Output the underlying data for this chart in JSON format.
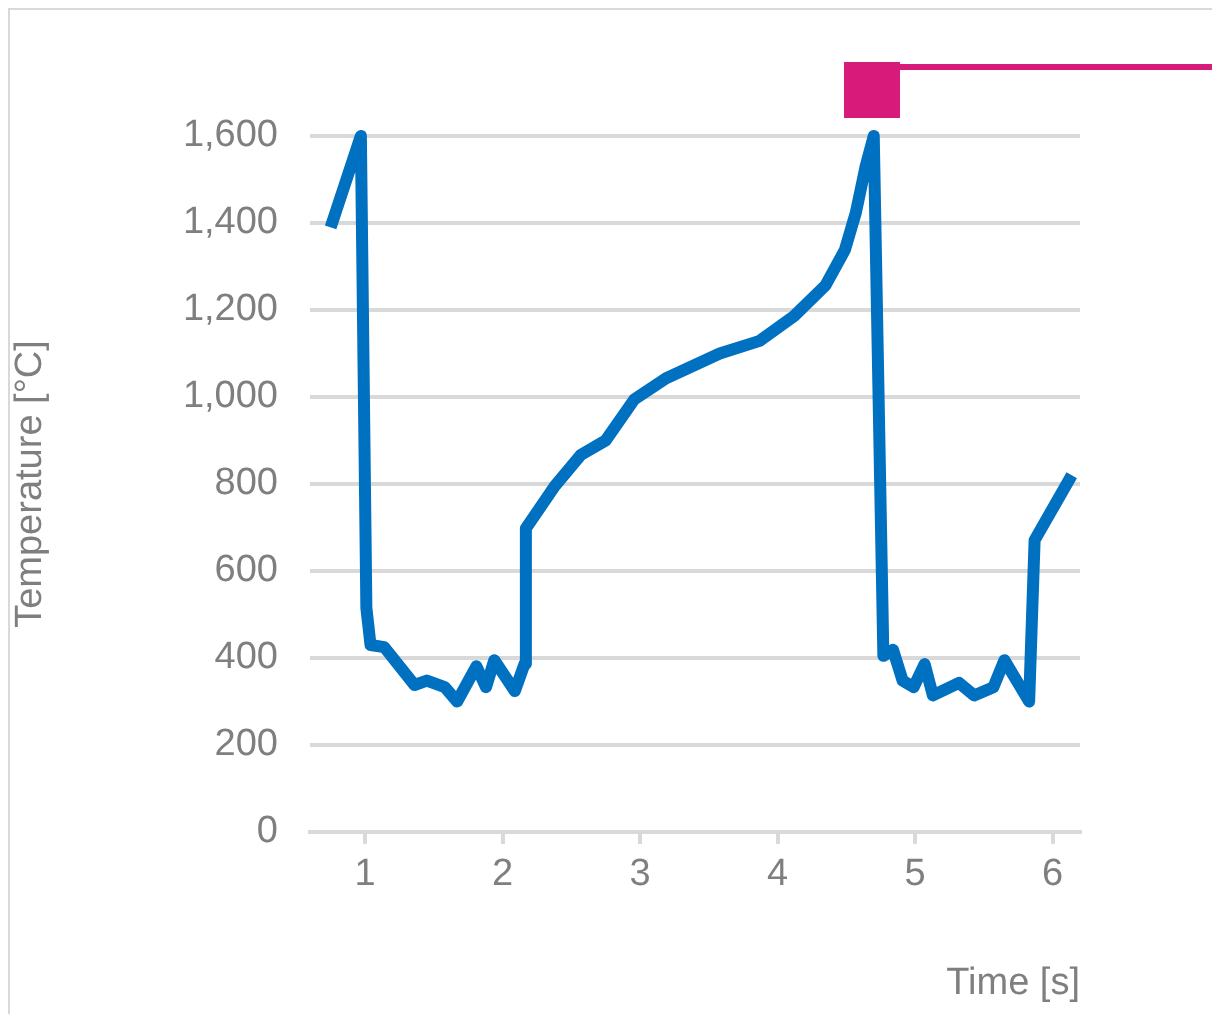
{
  "chart_data": {
    "type": "line",
    "xlabel": "Time [s]",
    "ylabel": "Temperature [°C]",
    "xlim": [
      0.6,
      6.2
    ],
    "xticks": [
      1,
      2,
      3,
      4,
      5,
      6
    ],
    "ylim": [
      0,
      1600
    ],
    "yticks": [
      0,
      200,
      400,
      600,
      800,
      {
        "value": 1000,
        "label": "1,000"
      },
      {
        "value": 1200,
        "label": "1,200"
      },
      {
        "value": 1400,
        "label": "1,400"
      },
      {
        "value": 1600,
        "label": "1,600"
      }
    ],
    "grid": "y",
    "legend": false,
    "marker": "none",
    "line_style": "solid",
    "series": [
      {
        "color": "#0070c0",
        "x": [
          0.75,
          0.97,
          1.01,
          1.04,
          1.14,
          1.36,
          1.45,
          1.58,
          1.67,
          1.81,
          1.88,
          1.94,
          2.09,
          2.16,
          2.17,
          2.38,
          2.57,
          2.75,
          2.96,
          3.19,
          3.58,
          3.87,
          4.12,
          4.35,
          4.49,
          4.57,
          4.64,
          4.7,
          4.77,
          4.84,
          4.91,
          4.99,
          5.07,
          5.13,
          5.32,
          5.43,
          5.57,
          5.65,
          5.83,
          5.87,
          6.14
        ],
        "values": [
          1390,
          1600,
          515,
          430,
          425,
          338,
          348,
          333,
          300,
          381,
          333,
          395,
          324,
          386,
          698,
          795,
          867,
          900,
          995,
          1043,
          1100,
          1129,
          1186,
          1257,
          1338,
          1424,
          1529,
          1600,
          405,
          419,
          348,
          333,
          386,
          314,
          343,
          314,
          333,
          395,
          300,
          671,
          820
        ]
      }
    ]
  }
}
